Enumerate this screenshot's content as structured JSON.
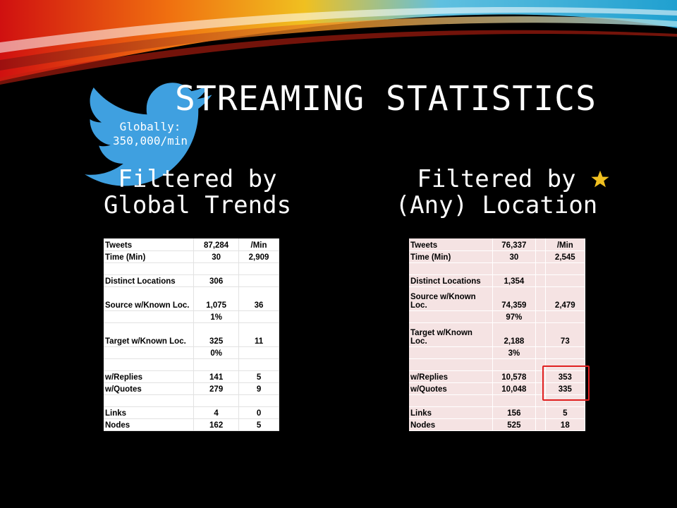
{
  "slide": {
    "title": "STREAMING STATISTICS",
    "globally_line1": "Globally:",
    "globally_line2": "350,000/min",
    "left_heading_line1": "Filtered by",
    "left_heading_line2": "Global Trends",
    "right_heading_line1": "Filtered by",
    "right_heading_line2": "(Any) Location",
    "colors": {
      "background": "#000000",
      "bird": "#3fa0e0",
      "star": "#f0c020",
      "highlight": "#e02020",
      "right_table_bg": "#f5e3e3"
    }
  },
  "left_table": {
    "rows": [
      {
        "label": "Tweets",
        "value": "87,284",
        "rate": "/Min"
      },
      {
        "label": "Time (Min)",
        "value": "30",
        "rate": "2,909"
      },
      {
        "label": "",
        "value": "",
        "rate": ""
      },
      {
        "label": "Distinct Locations",
        "value": "306",
        "rate": ""
      },
      {
        "label": "Source w/Known Loc.",
        "value": "1,075",
        "rate": "36"
      },
      {
        "label": "",
        "value": "1%",
        "rate": ""
      },
      {
        "label": "Target w/Known Loc.",
        "value": "325",
        "rate": "11"
      },
      {
        "label": "",
        "value": "0%",
        "rate": ""
      },
      {
        "label": "",
        "value": "",
        "rate": ""
      },
      {
        "label": "w/Replies",
        "value": "141",
        "rate": "5"
      },
      {
        "label": "w/Quotes",
        "value": "279",
        "rate": "9"
      },
      {
        "label": "",
        "value": "",
        "rate": ""
      },
      {
        "label": "Links",
        "value": "4",
        "rate": "0"
      },
      {
        "label": "Nodes",
        "value": "162",
        "rate": "5"
      }
    ]
  },
  "right_table": {
    "rows": [
      {
        "label": "Tweets",
        "value": "76,337",
        "rate": "/Min"
      },
      {
        "label": "Time (Min)",
        "value": "30",
        "rate": "2,545"
      },
      {
        "label": "",
        "value": "",
        "rate": ""
      },
      {
        "label": "Distinct Locations",
        "value": "1,354",
        "rate": ""
      },
      {
        "label": "Source w/Known Loc.",
        "value": "74,359",
        "rate": "2,479"
      },
      {
        "label": "",
        "value": "97%",
        "rate": ""
      },
      {
        "label": "Target w/Known Loc.",
        "value": "2,188",
        "rate": "73"
      },
      {
        "label": "",
        "value": "3%",
        "rate": ""
      },
      {
        "label": "",
        "value": "",
        "rate": ""
      },
      {
        "label": "w/Replies",
        "value": "10,578",
        "rate": "353"
      },
      {
        "label": "w/Quotes",
        "value": "10,048",
        "rate": "335"
      },
      {
        "label": "",
        "value": "",
        "rate": ""
      },
      {
        "label": "Links",
        "value": "156",
        "rate": "5"
      },
      {
        "label": "Nodes",
        "value": "525",
        "rate": "18"
      }
    ]
  }
}
